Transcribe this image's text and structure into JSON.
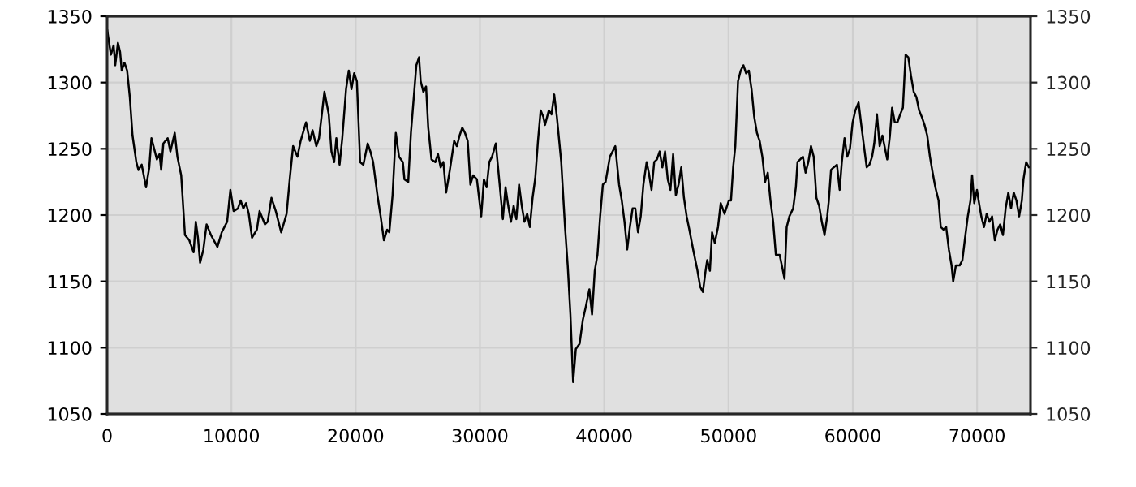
{
  "chart_data": {
    "type": "line",
    "x": [
      0,
      305,
      522,
      653,
      870,
      1044,
      1175,
      1392,
      1610,
      1827,
      2045,
      2349,
      2523,
      2784,
      3132,
      3393,
      3567,
      3785,
      4002,
      4220,
      4350,
      4524,
      4872,
      5090,
      5438,
      5655,
      5960,
      6264,
      6612,
      6960,
      7134,
      7308,
      7482,
      7743,
      8004,
      8352,
      8874,
      9222,
      9657,
      9918,
      10179,
      10527,
      10745,
      10962,
      11180,
      11397,
      11658,
      12050,
      12267,
      12702,
      12920,
      13224,
      13572,
      14007,
      14442,
      14703,
      14964,
      15312,
      15573,
      16008,
      16312,
      16530,
      16834,
      17052,
      17487,
      17835,
      18052,
      18270,
      18444,
      18705,
      18922,
      19227,
      19445,
      19662,
      19880,
      20097,
      20358,
      20619,
      20967,
      21185,
      21402,
      21750,
      22011,
      22272,
      22533,
      22707,
      22968,
      23229,
      23490,
      23794,
      23925,
      24230,
      24447,
      24882,
      25100,
      25230,
      25448,
      25665,
      25839,
      26100,
      26405,
      26622,
      26840,
      27057,
      27275,
      27579,
      27927,
      28145,
      28362,
      28580,
      28797,
      29015,
      29232,
      29450,
      29754,
      30102,
      30320,
      30537,
      30755,
      30972,
      31277,
      31625,
      31842,
      32060,
      32277,
      32495,
      32712,
      32930,
      33147,
      33365,
      33582,
      33800,
      34017,
      34235,
      34452,
      34670,
      34887,
      35105,
      35235,
      35540,
      35757,
      35975,
      36192,
      36540,
      36845,
      37062,
      37280,
      37497,
      37715,
      38019,
      38280,
      38498,
      38802,
      39020,
      39237,
      39455,
      39672,
      39890,
      40107,
      40455,
      40890,
      41195,
      41412,
      41630,
      41847,
      42065,
      42282,
      42500,
      42717,
      42935,
      43152,
      43413,
      43587,
      43805,
      44022,
      44240,
      44457,
      44675,
      44892,
      45110,
      45327,
      45545,
      45762,
      45980,
      46197,
      46415,
      46632,
      46850,
      47154,
      47502,
      47720,
      47937,
      48155,
      48285,
      48503,
      48677,
      48894,
      49155,
      49373,
      49677,
      50025,
      50199,
      50373,
      50547,
      50765,
      50982,
      51200,
      51417,
      51635,
      51852,
      52070,
      52287,
      52505,
      52722,
      52940,
      53157,
      53375,
      53592,
      53810,
      54114,
      54375,
      54506,
      54680,
      54897,
      55202,
      55419,
      55550,
      55767,
      55985,
      56202,
      56420,
      56637,
      56855,
      57072,
      57290,
      57507,
      57725,
      57942,
      58073,
      58247,
      58464,
      58725,
      58943,
      59117,
      59334,
      59552,
      59769,
      59987,
      60204,
      60465,
      60683,
      60900,
      61118,
      61335,
      61553,
      61727,
      61944,
      62162,
      62379,
      62553,
      62771,
      62988,
      63162,
      63380,
      63597,
      63815,
      64032,
      64250,
      64467,
      64685,
      64902,
      65120,
      65337,
      65555,
      65772,
      65990,
      66207,
      66425,
      66642,
      66903,
      67077,
      67295,
      67512,
      67730,
      67947,
      68078,
      68295,
      68600,
      68817,
      69035,
      69252,
      69470,
      69600,
      69774,
      69992,
      70122,
      70340,
      70557,
      70775,
      70992,
      71210,
      71427,
      71645,
      71862,
      72080,
      72297,
      72515,
      72732,
      72950,
      73167,
      73385,
      73602,
      73733,
      73950,
      74168
    ],
    "series": [
      {
        "color": "#000000",
        "values": [
          1340,
          1321,
          1328,
          1313,
          1330,
          1323,
          1309,
          1315,
          1309,
          1289,
          1260,
          1240,
          1234,
          1238,
          1221,
          1236,
          1258,
          1250,
          1242,
          1246,
          1234,
          1254,
          1258,
          1248,
          1262,
          1244,
          1230,
          1185,
          1181,
          1172,
          1195,
          1183,
          1164,
          1174,
          1193,
          1185,
          1176,
          1187,
          1195,
          1219,
          1203,
          1205,
          1211,
          1205,
          1209,
          1201,
          1183,
          1189,
          1203,
          1193,
          1195,
          1213,
          1203,
          1187,
          1201,
          1228,
          1252,
          1244,
          1256,
          1270,
          1256,
          1264,
          1252,
          1258,
          1293,
          1276,
          1248,
          1240,
          1258,
          1238,
          1258,
          1295,
          1309,
          1295,
          1307,
          1301,
          1240,
          1238,
          1254,
          1248,
          1240,
          1215,
          1199,
          1181,
          1189,
          1187,
          1215,
          1262,
          1244,
          1240,
          1227,
          1225,
          1262,
          1313,
          1319,
          1301,
          1293,
          1297,
          1266,
          1242,
          1240,
          1246,
          1236,
          1240,
          1217,
          1234,
          1256,
          1252,
          1260,
          1266,
          1262,
          1256,
          1223,
          1230,
          1227,
          1199,
          1227,
          1221,
          1240,
          1244,
          1254,
          1219,
          1197,
          1221,
          1207,
          1195,
          1207,
          1197,
          1223,
          1207,
          1195,
          1201,
          1191,
          1213,
          1228,
          1256,
          1279,
          1274,
          1268,
          1279,
          1276,
          1291,
          1274,
          1240,
          1191,
          1162,
          1125,
          1074,
          1099,
          1103,
          1121,
          1130,
          1144,
          1125,
          1158,
          1170,
          1199,
          1223,
          1225,
          1244,
          1252,
          1223,
          1211,
          1195,
          1174,
          1191,
          1205,
          1205,
          1187,
          1199,
          1223,
          1240,
          1232,
          1219,
          1240,
          1242,
          1248,
          1236,
          1248,
          1227,
          1219,
          1246,
          1215,
          1223,
          1236,
          1213,
          1199,
          1189,
          1174,
          1158,
          1146,
          1142,
          1158,
          1166,
          1158,
          1187,
          1179,
          1191,
          1209,
          1201,
          1211,
          1211,
          1236,
          1252,
          1301,
          1309,
          1313,
          1307,
          1309,
          1295,
          1274,
          1262,
          1256,
          1244,
          1225,
          1232,
          1211,
          1195,
          1170,
          1170,
          1158,
          1152,
          1191,
          1199,
          1205,
          1221,
          1240,
          1242,
          1244,
          1232,
          1240,
          1252,
          1244,
          1213,
          1207,
          1195,
          1185,
          1199,
          1211,
          1234,
          1236,
          1238,
          1219,
          1240,
          1258,
          1244,
          1250,
          1270,
          1279,
          1285,
          1268,
          1252,
          1236,
          1238,
          1244,
          1254,
          1276,
          1252,
          1260,
          1252,
          1242,
          1260,
          1281,
          1270,
          1270,
          1276,
          1281,
          1321,
          1319,
          1305,
          1293,
          1289,
          1279,
          1274,
          1268,
          1260,
          1244,
          1232,
          1221,
          1211,
          1191,
          1189,
          1191,
          1174,
          1162,
          1150,
          1162,
          1162,
          1166,
          1183,
          1199,
          1211,
          1230,
          1209,
          1219,
          1211,
          1199,
          1191,
          1201,
          1195,
          1199,
          1181,
          1189,
          1193,
          1185,
          1205,
          1217,
          1205,
          1217,
          1211,
          1199,
          1211,
          1227,
          1240,
          1236
        ]
      }
    ],
    "xlim": [
      0,
      74300
    ],
    "xticks": [
      0,
      10000,
      20000,
      30000,
      40000,
      50000,
      60000,
      70000
    ],
    "ylim": [
      1050,
      1350
    ],
    "yticks": [
      1050,
      1100,
      1150,
      1200,
      1250,
      1300,
      1350
    ],
    "y2lim": [
      1050,
      1350
    ],
    "y2ticks": [
      1050,
      1100,
      1150,
      1200,
      1250,
      1300,
      1350
    ],
    "grid": true,
    "legend": false
  }
}
